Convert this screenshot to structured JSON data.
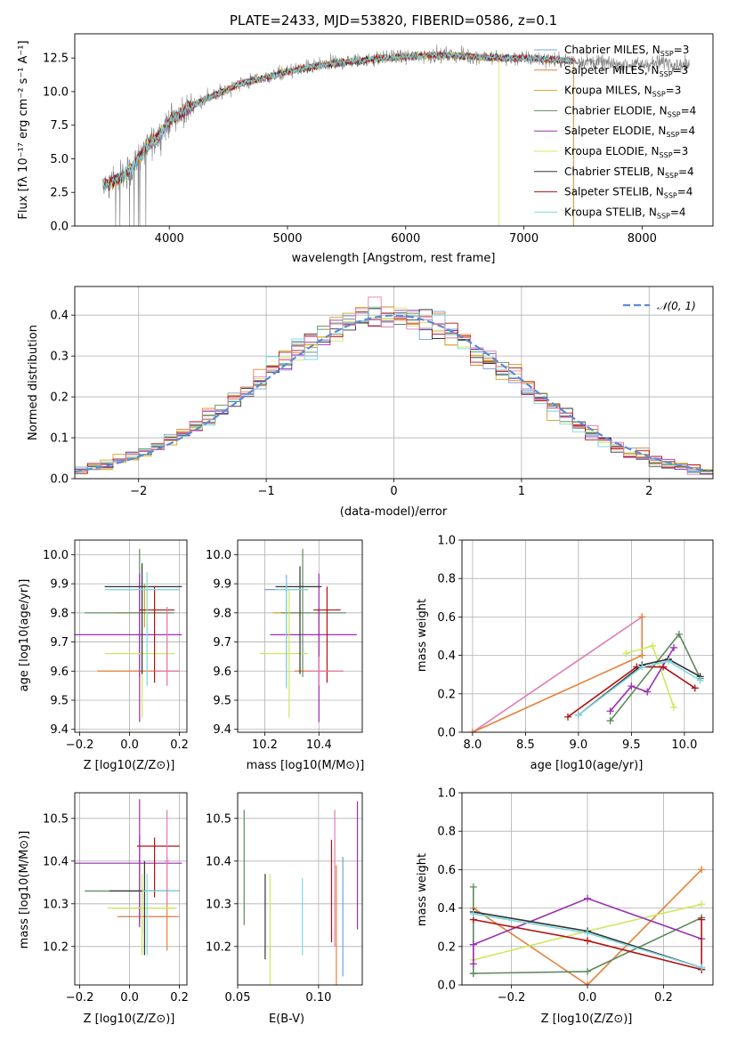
{
  "colors": {
    "Chabrier MILES": "#7b9fd6",
    "Salpeter MILES": "#e6813a",
    "Kroupa MILES": "#d4a017",
    "Chabrier ELODIE": "#5e8a5e",
    "Salpeter ELODIE": "#9b2fb0",
    "Kroupa ELODIE": "#cde85c",
    "Chabrier STELIB": "#333333",
    "Salpeter STELIB": "#b21212",
    "Kroupa STELIB": "#7fd8e0",
    "pink": "#e27bb0",
    "grid": "#b0b0b0",
    "spectrum": "#808080"
  },
  "chart_data": [
    {
      "id": "spectrum",
      "type": "line",
      "title": "PLATE=2433, MJD=53820, FIBERID=0586, z=0.1",
      "xlabel": "wavelength [Angstrom, rest frame]",
      "ylabel": "Flux [fλ 10⁻¹⁷ erg cm⁻² s⁻¹ A⁻¹]",
      "xlim": [
        3200,
        8600
      ],
      "ylim": [
        0,
        14.3
      ],
      "xticks": [
        "4000",
        "5000",
        "6000",
        "7000",
        "8000"
      ],
      "yticks": [
        "0.0",
        "2.5",
        "5.0",
        "7.5",
        "10.0",
        "12.5"
      ],
      "grid": false,
      "legend_position": "right",
      "legend": [
        "Chabrier MILES, N_SSP=3",
        "Salpeter MILES, N_SSP=3",
        "Kroupa MILES, N_SSP=3",
        "Chabrier ELODIE, N_SSP=4",
        "Salpeter ELODIE, N_SSP=4",
        "Kroupa ELODIE, N_SSP=3",
        "Chabrier STELIB, N_SSP=4",
        "Salpeter STELIB, N_SSP=4",
        "Kroupa STELIB, N_SSP=4"
      ],
      "continuum": {
        "x": [
          3450,
          3600,
          3700,
          3800,
          3900,
          4000,
          4200,
          4400,
          4600,
          4800,
          5000,
          5200,
          5400,
          5600,
          5800,
          6000,
          6200,
          6400,
          6600,
          6800,
          7000,
          7200,
          7400,
          7600,
          7800,
          8000,
          8200,
          8400,
          8600
        ],
        "y": [
          3.0,
          3.6,
          4.5,
          5.8,
          6.6,
          7.8,
          9.0,
          9.8,
          10.6,
          11.0,
          11.5,
          11.8,
          12.1,
          12.3,
          12.5,
          12.6,
          12.7,
          12.7,
          12.6,
          12.5,
          12.5,
          12.4,
          12.3,
          12.2,
          12.0,
          12.0,
          12.2,
          11.9,
          11.5
        ]
      }
    },
    {
      "id": "residuals",
      "type": "histogram",
      "xlabel": "(data-model)/error",
      "ylabel": "Normed distribution",
      "xlim": [
        -2.5,
        2.5
      ],
      "ylim": [
        0,
        0.47
      ],
      "xticks": [
        "−2",
        "−1",
        "0",
        "1",
        "2"
      ],
      "yticks": [
        "0.0",
        "0.1",
        "0.2",
        "0.3",
        "0.4"
      ],
      "grid": true,
      "bin_width": 0.1,
      "legend": [
        "𝒩(0, 1)"
      ],
      "legend_position": "top-right",
      "reference_curve": "normal(0,1)"
    },
    {
      "id": "age_vs_Z",
      "type": "errorbar",
      "xlabel": "Z [log10(Z/Z⊙)]",
      "ylabel": "age  [log10(age/yr)]",
      "xlim": [
        -0.22,
        0.23
      ],
      "ylim": [
        9.39,
        10.05
      ],
      "xticks": [
        "−0.2",
        "0.0",
        "0.2"
      ],
      "yticks": [
        "9.4",
        "9.5",
        "9.6",
        "9.7",
        "9.8",
        "9.9",
        "10.0"
      ],
      "grid": true,
      "points": [
        {
          "model": "Chabrier MILES",
          "x": 0.04,
          "xerr": [
            0.12,
            0.16
          ],
          "y": 9.88,
          "yerr": [
            0.23,
            0.05
          ]
        },
        {
          "model": "Salpeter MILES",
          "x": 0.15,
          "xerr": [
            0.28,
            0.05
          ],
          "y": 9.6,
          "yerr": [
            0.05,
            0.22
          ]
        },
        {
          "model": "Kroupa MILES",
          "x": 0.06,
          "xerr": [
            0.12,
            0.1
          ],
          "y": 9.8,
          "yerr": [
            0.05,
            0.1
          ]
        },
        {
          "model": "Chabrier ELODIE",
          "x": 0.04,
          "xerr": [
            0.22,
            0.14
          ],
          "y": 9.8,
          "yerr": [
            0.22,
            0.22
          ]
        },
        {
          "model": "Salpeter ELODIE",
          "x": 0.04,
          "xerr": [
            0.34,
            0.17
          ],
          "y": 9.725,
          "yerr": [
            0.3,
            0.21
          ]
        },
        {
          "model": "Kroupa ELODIE",
          "x": 0.05,
          "xerr": [
            0.15,
            0.13
          ],
          "y": 9.66,
          "yerr": [
            0.22,
            0.22
          ]
        },
        {
          "model": "Chabrier STELIB",
          "x": 0.05,
          "xerr": [
            0.15,
            0.16
          ],
          "y": 9.89,
          "yerr": [
            0.3,
            0.08
          ]
        },
        {
          "model": "Salpeter STELIB",
          "x": 0.1,
          "xerr": [
            0.06,
            0.08
          ],
          "y": 9.81,
          "yerr": [
            0.25,
            0.08
          ]
        },
        {
          "model": "Kroupa STELIB",
          "x": 0.07,
          "xerr": [
            0.17,
            0.13
          ],
          "y": 9.88,
          "yerr": [
            0.33,
            0.06
          ]
        },
        {
          "model": "pink",
          "x": 0.15,
          "xerr": [
            0.05,
            0.05
          ],
          "y": 9.6,
          "yerr": [
            0.05,
            0.22
          ]
        }
      ]
    },
    {
      "id": "age_vs_mass",
      "type": "errorbar",
      "xlabel": "mass [log10(M/M⊙)]",
      "ylabel": "",
      "xlim": [
        10.1,
        10.56
      ],
      "ylim": [
        9.39,
        10.05
      ],
      "xticks": [
        "10.2",
        "10.4"
      ],
      "yticks": [
        "9.4",
        "9.5",
        "9.6",
        "9.7",
        "9.8",
        "9.9",
        "10.0"
      ],
      "grid": true,
      "points": [
        {
          "model": "Chabrier MILES",
          "x": 10.28,
          "xerr": [
            0.08,
            0.08
          ],
          "y": 9.88,
          "yerr": [
            0.05,
            0.05
          ]
        },
        {
          "model": "Salpeter MILES",
          "x": 10.4,
          "xerr": [
            0.09,
            0.09
          ],
          "y": 9.6,
          "yerr": [
            0.05,
            0.22
          ]
        },
        {
          "model": "Kroupa MILES",
          "x": 10.28,
          "xerr": [
            0.05,
            0.05
          ],
          "y": 9.8,
          "yerr": [
            0.25,
            0.05
          ]
        },
        {
          "model": "Chabrier ELODIE",
          "x": 10.34,
          "xerr": [
            0.08,
            0.16
          ],
          "y": 9.8,
          "yerr": [
            0.22,
            0.22
          ]
        },
        {
          "model": "Salpeter ELODIE",
          "x": 10.4,
          "xerr": [
            0.18,
            0.14
          ],
          "y": 9.725,
          "yerr": [
            0.3,
            0.21
          ]
        },
        {
          "model": "Kroupa ELODIE",
          "x": 10.29,
          "xerr": [
            0.11,
            0.07
          ],
          "y": 9.66,
          "yerr": [
            0.22,
            0.22
          ]
        },
        {
          "model": "Chabrier STELIB",
          "x": 10.33,
          "xerr": [
            0.09,
            0.08
          ],
          "y": 9.89,
          "yerr": [
            0.3,
            0.07
          ]
        },
        {
          "model": "Salpeter STELIB",
          "x": 10.43,
          "xerr": [
            0.05,
            0.05
          ],
          "y": 9.81,
          "yerr": [
            0.25,
            0.08
          ]
        },
        {
          "model": "Kroupa STELIB",
          "x": 10.28,
          "xerr": [
            0.04,
            0.08
          ],
          "y": 9.88,
          "yerr": [
            0.34,
            0.04
          ]
        },
        {
          "model": "pink",
          "x": 10.4,
          "xerr": [
            0.04,
            0.09
          ],
          "y": 9.6,
          "yerr": [
            0.05,
            0.05
          ]
        }
      ]
    },
    {
      "id": "weight_vs_age",
      "type": "line",
      "xlabel": "age  [log10(age/yr)]",
      "ylabel": "mass weight",
      "xlim": [
        7.9,
        10.27
      ],
      "ylim": [
        0,
        1
      ],
      "xticks": [
        "8.0",
        "8.5",
        "9.0",
        "9.5",
        "10.0"
      ],
      "yticks": [
        "0.0",
        "0.2",
        "0.4",
        "0.6",
        "0.8",
        "1.0"
      ],
      "grid": true,
      "series": [
        {
          "model": "pink",
          "x": [
            8.0,
            9.6
          ],
          "y": [
            0.0,
            0.6
          ]
        },
        {
          "model": "Salpeter MILES",
          "x": [
            8.0,
            9.6,
            9.6
          ],
          "y": [
            0.0,
            0.4,
            0.6
          ]
        },
        {
          "model": "Kroupa ELODIE",
          "x": [
            9.45,
            9.7,
            9.9
          ],
          "y": [
            0.41,
            0.45,
            0.13
          ]
        },
        {
          "model": "Chabrier ELODIE",
          "x": [
            9.3,
            9.95,
            10.15
          ],
          "y": [
            0.06,
            0.51,
            0.28
          ]
        },
        {
          "model": "Salpeter ELODIE",
          "x": [
            9.3,
            9.5,
            9.65,
            9.9
          ],
          "y": [
            0.11,
            0.24,
            0.21,
            0.44
          ]
        },
        {
          "model": "Salpeter STELIB",
          "x": [
            8.9,
            9.55,
            9.8,
            10.1
          ],
          "y": [
            0.08,
            0.34,
            0.34,
            0.23
          ]
        },
        {
          "model": "Chabrier STELIB",
          "x": [
            9.0,
            9.6,
            9.85,
            10.15
          ],
          "y": [
            0.09,
            0.35,
            0.38,
            0.29
          ]
        },
        {
          "model": "Kroupa STELIB",
          "x": [
            9.0,
            9.6,
            9.85,
            10.15
          ],
          "y": [
            0.09,
            0.34,
            0.37,
            0.27
          ]
        }
      ]
    },
    {
      "id": "mass_vs_Z",
      "type": "errorbar",
      "xlabel": "Z [log10(Z/Z⊙)]",
      "ylabel": "mass [log10(M/M⊙)]",
      "xlim": [
        -0.22,
        0.23
      ],
      "ylim": [
        10.11,
        10.56
      ],
      "xticks": [
        "−0.2",
        "0.0",
        "0.2"
      ],
      "yticks": [
        "10.2",
        "10.3",
        "10.4",
        "10.5"
      ],
      "grid": true,
      "points": [
        {
          "model": "Chabrier MILES",
          "x": 0.04,
          "xerr": [
            0.08,
            0.15
          ],
          "y": 10.27,
          "yerr": [
            0.02,
            0.02
          ]
        },
        {
          "model": "Salpeter MILES",
          "x": 0.15,
          "xerr": [
            0.2,
            0.05
          ],
          "y": 10.27,
          "yerr": [
            0.08,
            0.14
          ]
        },
        {
          "model": "Kroupa MILES",
          "x": 0.05,
          "xerr": [
            0.12,
            0.13
          ],
          "y": 10.29,
          "yerr": [
            0.06,
            0.05
          ]
        },
        {
          "model": "Chabrier ELODIE",
          "x": 0.04,
          "xerr": [
            0.22,
            0.14
          ],
          "y": 10.33,
          "yerr": [
            0.07,
            0.13
          ]
        },
        {
          "model": "Salpeter ELODIE",
          "x": 0.04,
          "xerr": [
            0.34,
            0.17
          ],
          "y": 10.395,
          "yerr": [
            0.15,
            0.15
          ]
        },
        {
          "model": "Kroupa ELODIE",
          "x": 0.05,
          "xerr": [
            0.14,
            0.14
          ],
          "y": 10.29,
          "yerr": [
            0.11,
            0.08
          ]
        },
        {
          "model": "Chabrier STELIB",
          "x": 0.06,
          "xerr": [
            0.14,
            0.14
          ],
          "y": 10.33,
          "yerr": [
            0.15,
            0.07
          ]
        },
        {
          "model": "Salpeter STELIB",
          "x": 0.1,
          "xerr": [
            0.07,
            0.1
          ],
          "y": 10.435,
          "yerr": [
            0.12,
            0.02
          ]
        },
        {
          "model": "Kroupa STELIB",
          "x": 0.07,
          "xerr": [
            0.02,
            0.13
          ],
          "y": 10.33,
          "yerr": [
            0.15,
            0.04
          ]
        },
        {
          "model": "pink",
          "x": 0.15,
          "xerr": [
            0.01,
            0.01
          ],
          "y": 10.4,
          "yerr": [
            0.1,
            0.12
          ]
        }
      ]
    },
    {
      "id": "mass_vs_ebv",
      "type": "errorbar",
      "xlabel": "E(B-V)",
      "ylabel": "",
      "xlim": [
        0.05,
        0.127
      ],
      "ylim": [
        10.11,
        10.56
      ],
      "xticks": [
        "0.05",
        "0.10"
      ],
      "yticks": [
        "10.2",
        "10.3",
        "10.4",
        "10.5"
      ],
      "grid": true,
      "points": [
        {
          "model": "Chabrier ELODIE",
          "x": 0.054,
          "y": 10.385,
          "yerr": [
            0.135,
            0.135
          ]
        },
        {
          "model": "Chabrier STELIB",
          "x": 0.067,
          "y": 10.27,
          "yerr": [
            0.1,
            0.1
          ]
        },
        {
          "model": "Kroupa ELODIE",
          "x": 0.07,
          "y": 10.24,
          "yerr": [
            0.13,
            0.13
          ]
        },
        {
          "model": "Kroupa STELIB",
          "x": 0.09,
          "y": 10.27,
          "yerr": [
            0.09,
            0.09
          ]
        },
        {
          "model": "Salpeter STELIB",
          "x": 0.108,
          "y": 10.33,
          "yerr": [
            0.12,
            0.12
          ]
        },
        {
          "model": "pink",
          "x": 0.11,
          "y": 10.36,
          "yerr": [
            0.16,
            0.16
          ]
        },
        {
          "model": "Salpeter MILES",
          "x": 0.111,
          "y": 10.25,
          "yerr": [
            0.14,
            0.14
          ]
        },
        {
          "model": "Chabrier MILES",
          "x": 0.115,
          "y": 10.27,
          "yerr": [
            0.14,
            0.14
          ]
        },
        {
          "model": "Salpeter ELODIE",
          "x": 0.124,
          "y": 10.39,
          "yerr": [
            0.15,
            0.15
          ]
        }
      ]
    },
    {
      "id": "weight_vs_Z",
      "type": "line",
      "xlabel": "Z [log10(Z/Z⊙)]",
      "ylabel": "mass weight",
      "xlim": [
        -0.33,
        0.33
      ],
      "ylim": [
        0,
        1
      ],
      "xticks": [
        "−0.2",
        "0.0",
        "0.2"
      ],
      "yticks": [
        "0.0",
        "0.2",
        "0.4",
        "0.6",
        "0.8",
        "1.0"
      ],
      "grid": true,
      "series": [
        {
          "model": "Salpeter MILES",
          "x": [
            -0.3,
            0.0,
            0.3
          ],
          "y": [
            0.4,
            0.0,
            0.6
          ]
        },
        {
          "model": "Kroupa ELODIE",
          "x": [
            -0.3,
            0.0,
            0.3
          ],
          "y": [
            0.13,
            0.28,
            0.42
          ]
        },
        {
          "model": "Chabrier ELODIE",
          "x": [
            -0.3,
            0.0,
            0.3
          ],
          "y": [
            0.06,
            0.07,
            0.35
          ]
        },
        {
          "model": "Chabrier ELODIE",
          "x": [
            -0.3,
            -0.3
          ],
          "y": [
            0.06,
            0.51
          ]
        },
        {
          "model": "Salpeter ELODIE",
          "x": [
            -0.3,
            0.0,
            0.3
          ],
          "y": [
            0.21,
            0.45,
            0.24
          ]
        },
        {
          "model": "Salpeter STELIB",
          "x": [
            -0.3,
            0.0,
            0.3
          ],
          "y": [
            0.34,
            0.23,
            0.08
          ]
        },
        {
          "model": "Salpeter STELIB",
          "x": [
            0.3,
            0.3
          ],
          "y": [
            0.08,
            0.34
          ]
        },
        {
          "model": "Chabrier STELIB",
          "x": [
            -0.3,
            0.0,
            0.3
          ],
          "y": [
            0.38,
            0.28,
            0.09
          ]
        },
        {
          "model": "Kroupa STELIB",
          "x": [
            -0.3,
            0.0,
            0.3
          ],
          "y": [
            0.37,
            0.27,
            0.09
          ]
        },
        {
          "model": "Salpeter ELODIE",
          "x": [
            -0.3,
            -0.3
          ],
          "y": [
            0.11,
            0.21
          ]
        }
      ]
    }
  ]
}
